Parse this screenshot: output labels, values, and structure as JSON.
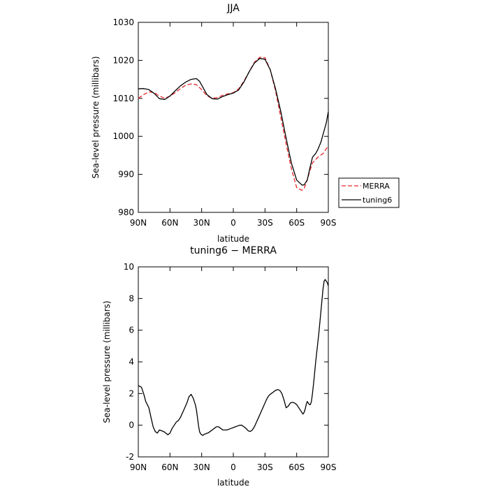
{
  "chart_data": [
    {
      "type": "line",
      "title": "JJA",
      "xlabel": "latitude",
      "ylabel": "Sea-level pressure (millibars)",
      "xlim": [
        90,
        -90
      ],
      "ylim": [
        980,
        1030
      ],
      "x_tick_values": [
        90,
        60,
        30,
        0,
        -30,
        -60,
        -90
      ],
      "x_tick_labels": [
        "90N",
        "60N",
        "30N",
        "0",
        "30S",
        "60S",
        "90S"
      ],
      "y_ticks": [
        980,
        990,
        1000,
        1010,
        1020,
        1030
      ],
      "legend": "right",
      "legend_entries": [
        "MERRA",
        "tuning6"
      ],
      "series": [
        {
          "name": "MERRA",
          "color": "#e8262a",
          "dashed": true,
          "x": [
            90,
            85,
            80,
            75,
            70,
            65,
            60,
            55,
            50,
            45,
            40,
            35,
            30,
            25,
            20,
            15,
            10,
            5,
            0,
            -5,
            -10,
            -15,
            -20,
            -25,
            -30,
            -35,
            -40,
            -45,
            -50,
            -55,
            -60,
            -65,
            -67,
            -70,
            -72,
            -75,
            -80,
            -85,
            -90
          ],
          "y": [
            1010.0,
            1011.0,
            1011.7,
            1011.5,
            1010.6,
            1010.0,
            1010.6,
            1011.5,
            1012.6,
            1013.5,
            1013.8,
            1013.6,
            1012.3,
            1010.7,
            1010.0,
            1010.2,
            1010.8,
            1011.2,
            1011.5,
            1012.5,
            1014.5,
            1017.0,
            1019.5,
            1020.8,
            1020.7,
            1017.5,
            1012.0,
            1005.0,
            998.0,
            991.5,
            986.5,
            985.8,
            986.2,
            988.5,
            990.5,
            993.0,
            994.5,
            995.5,
            997.5
          ]
        },
        {
          "name": "tuning6",
          "color": "#000000",
          "dashed": false,
          "x": [
            90,
            85,
            80,
            75,
            70,
            65,
            60,
            55,
            50,
            45,
            40,
            35,
            32,
            30,
            25,
            20,
            15,
            10,
            5,
            0,
            -5,
            -10,
            -15,
            -20,
            -25,
            -30,
            -35,
            -40,
            -45,
            -50,
            -55,
            -60,
            -65,
            -67,
            -70,
            -72,
            -75,
            -78,
            -80,
            -83,
            -85,
            -88,
            -90
          ],
          "y": [
            1012.5,
            1012.6,
            1012.3,
            1011.3,
            1009.9,
            1009.7,
            1010.6,
            1012.0,
            1013.3,
            1014.3,
            1015.0,
            1015.2,
            1014.5,
            1013.5,
            1011.0,
            1009.9,
            1009.8,
            1010.5,
            1011.0,
            1011.4,
            1012.2,
            1014.3,
            1017.0,
            1019.3,
            1020.5,
            1020.3,
            1017.5,
            1012.5,
            1006.5,
            999.5,
            993.0,
            988.5,
            987.2,
            987.2,
            988.5,
            991.0,
            994.5,
            995.5,
            996.5,
            998.5,
            1000.5,
            1003.5,
            1006.5
          ]
        }
      ]
    },
    {
      "type": "line",
      "title": "tuning6 − MERRA",
      "xlabel": "latitude",
      "ylabel": "Sea-level pressure (millibars)",
      "xlim": [
        90,
        -90
      ],
      "ylim": [
        -2,
        10
      ],
      "x_tick_values": [
        90,
        60,
        30,
        0,
        -30,
        -60,
        -90
      ],
      "x_tick_labels": [
        "90N",
        "60N",
        "30N",
        "0",
        "30S",
        "60S",
        "90S"
      ],
      "y_ticks": [
        -2,
        0,
        2,
        4,
        6,
        8,
        10
      ],
      "series": [
        {
          "color": "#000000",
          "dashed": false,
          "x": [
            90,
            87,
            85,
            83,
            80,
            78,
            76,
            74,
            72,
            70,
            68,
            66,
            64,
            62,
            60,
            58,
            56,
            54,
            52,
            50,
            48,
            46,
            44,
            42,
            40,
            38,
            37,
            36,
            35,
            34,
            33,
            32,
            31,
            30,
            29,
            28,
            27,
            26,
            25,
            24,
            22,
            20,
            18,
            16,
            14,
            12,
            10,
            8,
            6,
            4,
            2,
            0,
            -2,
            -4,
            -6,
            -8,
            -10,
            -12,
            -14,
            -16,
            -18,
            -20,
            -22,
            -24,
            -26,
            -28,
            -30,
            -32,
            -34,
            -36,
            -38,
            -40,
            -42,
            -44,
            -46,
            -48,
            -50,
            -52,
            -54,
            -56,
            -58,
            -60,
            -62,
            -64,
            -65,
            -66,
            -67,
            -68,
            -69,
            -70,
            -71,
            -72,
            -73,
            -74,
            -75,
            -76,
            -77,
            -78,
            -79,
            -80,
            -81,
            -82,
            -83,
            -84,
            -85,
            -86,
            -87,
            -88,
            -89,
            -90
          ],
          "y": [
            2.5,
            2.4,
            2.0,
            1.5,
            1.1,
            0.5,
            -0.1,
            -0.4,
            -0.5,
            -0.3,
            -0.35,
            -0.4,
            -0.5,
            -0.6,
            -0.5,
            -0.2,
            0.0,
            0.2,
            0.3,
            0.5,
            0.8,
            1.1,
            1.4,
            1.8,
            1.95,
            1.7,
            1.5,
            1.3,
            1.0,
            0.5,
            0.0,
            -0.4,
            -0.55,
            -0.6,
            -0.65,
            -0.6,
            -0.55,
            -0.55,
            -0.5,
            -0.5,
            -0.4,
            -0.3,
            -0.2,
            -0.1,
            -0.1,
            -0.2,
            -0.3,
            -0.3,
            -0.3,
            -0.25,
            -0.2,
            -0.15,
            -0.1,
            -0.05,
            0.0,
            0.0,
            -0.1,
            -0.2,
            -0.35,
            -0.4,
            -0.3,
            -0.1,
            0.2,
            0.5,
            0.8,
            1.1,
            1.4,
            1.7,
            1.9,
            2.0,
            2.1,
            2.2,
            2.25,
            2.2,
            2.0,
            1.6,
            1.1,
            1.2,
            1.4,
            1.45,
            1.4,
            1.3,
            1.1,
            0.9,
            0.8,
            0.7,
            0.8,
            1.0,
            1.3,
            1.5,
            1.4,
            1.3,
            1.3,
            1.5,
            2.0,
            2.6,
            3.3,
            4.0,
            4.6,
            5.2,
            5.8,
            6.5,
            7.2,
            7.9,
            8.6,
            9.1,
            9.2,
            9.1,
            9.0,
            8.8
          ]
        }
      ]
    }
  ]
}
